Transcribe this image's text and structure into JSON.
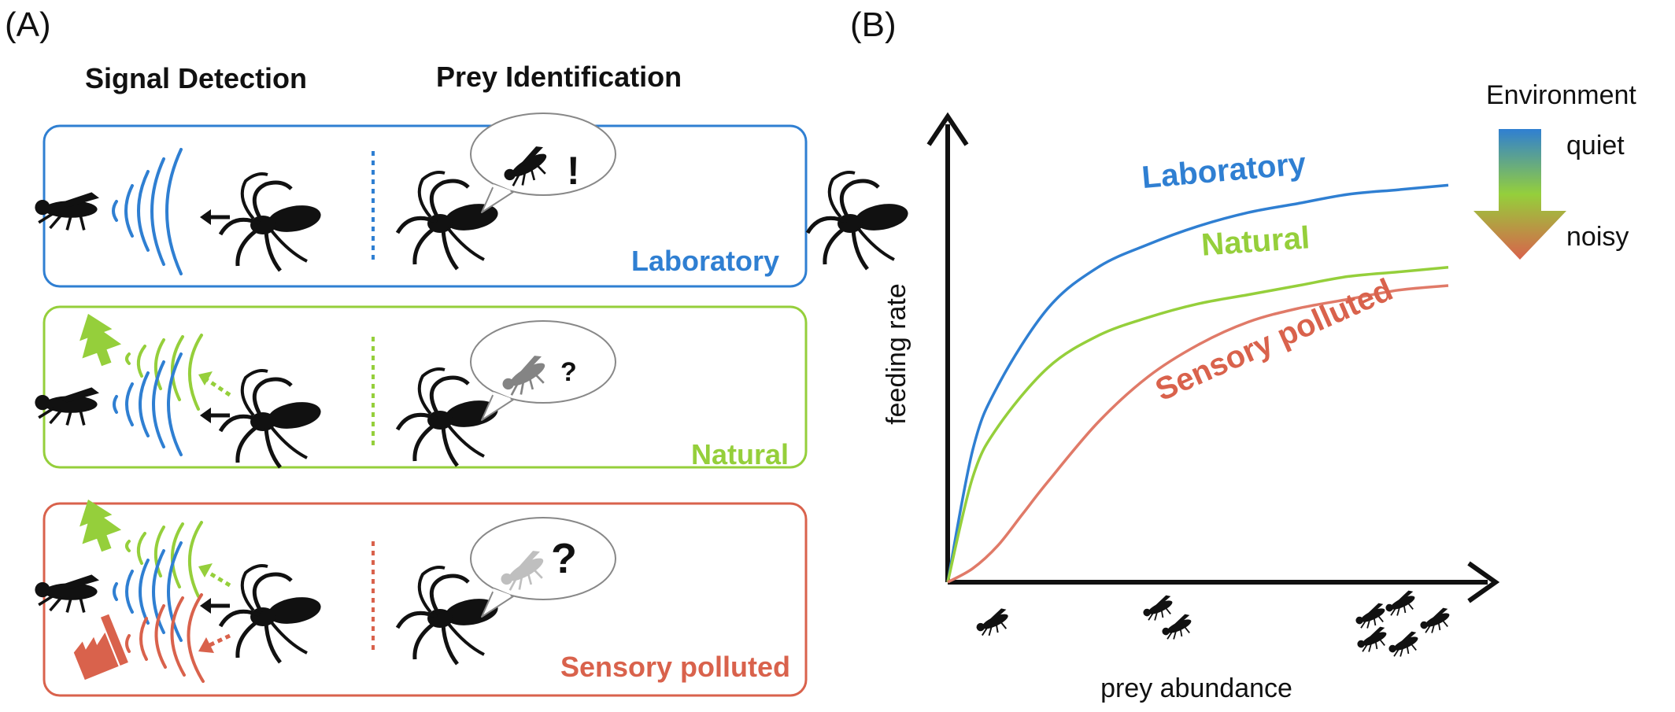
{
  "colors": {
    "laboratory": "#2f7fd2",
    "natural": "#95cf3b",
    "polluted": "#d9624c",
    "ink": "#111111"
  },
  "panel_a": {
    "label": "(A)",
    "col_signal": "Signal Detection",
    "col_prey": "Prey Identification",
    "rows": [
      {
        "env": "Laboratory",
        "id_mark": "!"
      },
      {
        "env": "Natural",
        "id_mark": "?"
      },
      {
        "env": "Sensory polluted",
        "id_mark": "?"
      }
    ]
  },
  "panel_b": {
    "label": "(B)",
    "legend": {
      "title": "Environment",
      "top": "quiet",
      "bottom": "noisy"
    }
  },
  "chart_data": {
    "type": "line",
    "xlabel": "prey abundance",
    "ylabel": "feeding rate",
    "series": [
      {
        "name": "Laboratory",
        "color": "#2f7fd2",
        "x": [
          0,
          0.05,
          0.1,
          0.2,
          0.3,
          0.4,
          0.5,
          0.6,
          0.7,
          0.8,
          0.9,
          1.0
        ],
        "y": [
          0,
          0.29,
          0.43,
          0.6,
          0.69,
          0.74,
          0.78,
          0.81,
          0.83,
          0.85,
          0.86,
          0.87
        ]
      },
      {
        "name": "Natural",
        "color": "#95cf3b",
        "x": [
          0,
          0.05,
          0.1,
          0.2,
          0.3,
          0.4,
          0.5,
          0.6,
          0.7,
          0.8,
          0.9,
          1.0
        ],
        "y": [
          0,
          0.23,
          0.34,
          0.47,
          0.54,
          0.58,
          0.61,
          0.63,
          0.65,
          0.67,
          0.68,
          0.69
        ]
      },
      {
        "name": "Sensory polluted",
        "color": "#e07a68",
        "x": [
          0,
          0.05,
          0.1,
          0.15,
          0.2,
          0.3,
          0.4,
          0.5,
          0.6,
          0.7,
          0.8,
          0.9,
          1.0
        ],
        "y": [
          0,
          0.03,
          0.08,
          0.15,
          0.22,
          0.35,
          0.45,
          0.52,
          0.57,
          0.6,
          0.62,
          0.64,
          0.65
        ]
      }
    ]
  }
}
